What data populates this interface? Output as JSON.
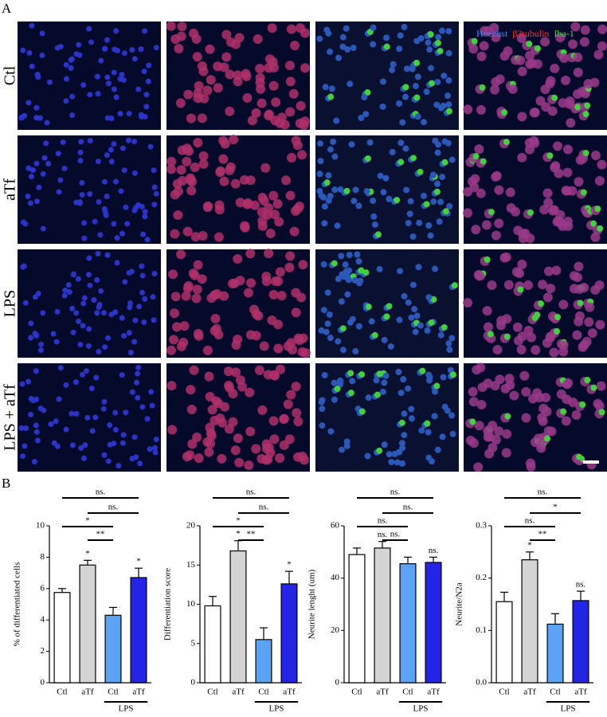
{
  "panel_a": {
    "label": "A",
    "rows": [
      "Ctl",
      "aTf",
      "LPS",
      "LPS + aTf"
    ],
    "legend": [
      "Hoechst",
      "β3tubulin",
      "Iba-1"
    ]
  },
  "panel_b": {
    "label": "B"
  },
  "chart_data": [
    {
      "type": "bar",
      "y_label": "% of differentiated cells",
      "categories": [
        "Ctl",
        "aTf",
        "Ctl",
        "aTf"
      ],
      "group": {
        "label": "LPS",
        "bars": [
          2,
          3
        ]
      },
      "values": [
        5.75,
        7.5,
        4.3,
        6.7
      ],
      "errors": [
        0.25,
        0.3,
        0.5,
        0.6
      ],
      "colors": [
        "#ffffff",
        "#d4d4d4",
        "#5ba2f4",
        "#2424e6"
      ],
      "annotations": [
        null,
        "*",
        null,
        "*"
      ],
      "ylim": [
        0,
        10
      ],
      "yticks": [
        0,
        2,
        4,
        6,
        8,
        10
      ],
      "comparisons": [
        {
          "bars": [
            0,
            3
          ],
          "label": "ns."
        },
        {
          "bars": [
            1,
            3
          ],
          "label": "ns."
        },
        {
          "bars": [
            0,
            2
          ],
          "label": "*"
        },
        {
          "bars": [
            1,
            2
          ],
          "label": "**"
        }
      ]
    },
    {
      "type": "bar",
      "y_label": "Differentiation score",
      "categories": [
        "Ctl",
        "aTf",
        "Ctl",
        "aTf"
      ],
      "group": {
        "label": "LPS",
        "bars": [
          2,
          3
        ]
      },
      "values": [
        9.8,
        16.8,
        5.5,
        12.6
      ],
      "errors": [
        1.2,
        1.3,
        1.5,
        1.6
      ],
      "colors": [
        "#ffffff",
        "#d4d4d4",
        "#5ba2f4",
        "#2424e6"
      ],
      "annotations": [
        null,
        "*",
        null,
        "*"
      ],
      "ylim": [
        0,
        20
      ],
      "yticks": [
        0,
        5,
        10,
        15,
        20
      ],
      "comparisons": [
        {
          "bars": [
            0,
            3
          ],
          "label": "ns."
        },
        {
          "bars": [
            1,
            3
          ],
          "label": "ns."
        },
        {
          "bars": [
            0,
            2
          ],
          "label": "*"
        },
        {
          "bars": [
            1,
            2
          ],
          "label": "**"
        }
      ]
    },
    {
      "type": "bar",
      "y_label": "Neurite lenght (um)",
      "categories": [
        "Ctl",
        "aTf",
        "Ctl",
        "aTf"
      ],
      "group": {
        "label": "LPS",
        "bars": [
          2,
          3
        ]
      },
      "values": [
        49,
        51.5,
        45.5,
        46
      ],
      "errors": [
        2.5,
        2.5,
        2.5,
        2
      ],
      "colors": [
        "#ffffff",
        "#d4d4d4",
        "#5ba2f4",
        "#2424e6"
      ],
      "annotations": [
        null,
        "ns.",
        null,
        "ns."
      ],
      "ylim": [
        0,
        60
      ],
      "yticks": [
        0,
        20,
        40,
        60
      ],
      "comparisons": [
        {
          "bars": [
            0,
            3
          ],
          "label": "ns."
        },
        {
          "bars": [
            1,
            3
          ],
          "label": "ns."
        },
        {
          "bars": [
            0,
            2
          ],
          "label": "ns."
        },
        {
          "bars": [
            1,
            2
          ],
          "label": "ns."
        }
      ]
    },
    {
      "type": "bar",
      "y_label": "Neurite/N2a",
      "categories": [
        "Ctl",
        "aTf",
        "Ctl",
        "aTf"
      ],
      "group": {
        "label": "LPS",
        "bars": [
          2,
          3
        ]
      },
      "values": [
        0.155,
        0.235,
        0.112,
        0.157
      ],
      "errors": [
        0.018,
        0.015,
        0.02,
        0.018
      ],
      "colors": [
        "#ffffff",
        "#d4d4d4",
        "#5ba2f4",
        "#2424e6"
      ],
      "annotations": [
        null,
        "*",
        null,
        "ns."
      ],
      "ylim": [
        0,
        0.3
      ],
      "yticks": [
        {
          "value": 0,
          "label": "0.0"
        },
        0.1,
        0.2,
        0.3
      ],
      "comparisons": [
        {
          "bars": [
            0,
            3
          ],
          "label": "ns."
        },
        {
          "bars": [
            1,
            3
          ],
          "label": "*"
        },
        {
          "bars": [
            0,
            2
          ],
          "label": "ns."
        },
        {
          "bars": [
            1,
            2
          ],
          "label": "**"
        }
      ]
    }
  ]
}
